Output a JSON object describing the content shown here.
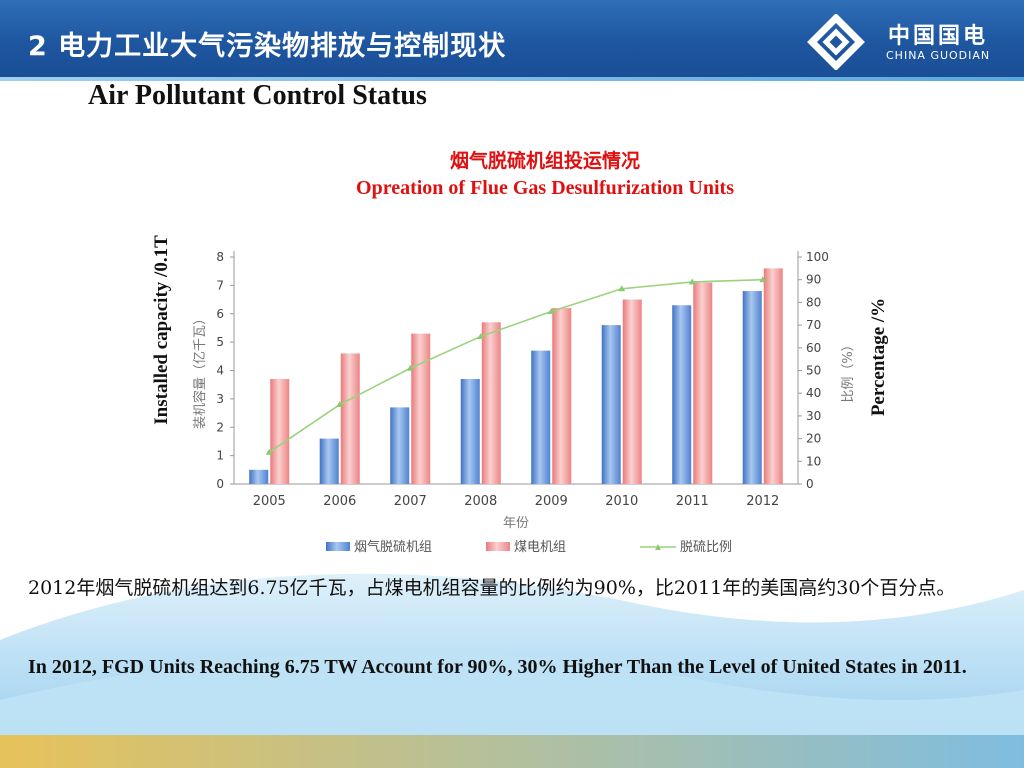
{
  "header": {
    "title": "2 电力工业大气污染物排放与控制现状",
    "logo_cn": "中国国电",
    "logo_en": "CHINA GUODIAN"
  },
  "subtitle": "Air Pollutant Control Status",
  "colors": {
    "header_blue": "#1e56a0",
    "title_red": "#e01010",
    "bar_blue": "#5b8fd6",
    "bar_red": "#f08f8f",
    "line_green": "#8fcf74"
  },
  "chart_data": {
    "type": "bar",
    "title": "烟气脱硫机组投运情况",
    "subtitle": "Opreation of  Flue Gas Desulfurization Units",
    "xlabel": "年份",
    "ylabel": "装机容量（亿千瓦）",
    "ylabel_en": "Installed capacity /0.1T",
    "y2label": "比例（%）",
    "y2label_en": "Percentage /%",
    "ylim": [
      0,
      8
    ],
    "y2lim": [
      0,
      100
    ],
    "yticks": [
      "0",
      "1",
      "2",
      "3",
      "4",
      "5",
      "6",
      "7",
      "8"
    ],
    "y2ticks": [
      "0",
      "10",
      "20",
      "30",
      "40",
      "50",
      "60",
      "70",
      "80",
      "90",
      "100"
    ],
    "categories": [
      "2005",
      "2006",
      "2007",
      "2008",
      "2009",
      "2010",
      "2011",
      "2012"
    ],
    "series": [
      {
        "name": "烟气脱硫机组",
        "kind": "bar",
        "axis": "left",
        "values": [
          0.5,
          1.6,
          2.7,
          3.7,
          4.7,
          5.6,
          6.3,
          6.8
        ]
      },
      {
        "name": "煤电机组",
        "kind": "bar",
        "axis": "left",
        "values": [
          3.7,
          4.6,
          5.3,
          5.7,
          6.2,
          6.5,
          7.1,
          7.6
        ]
      },
      {
        "name": "脱硫比例",
        "kind": "line",
        "axis": "right",
        "values": [
          14,
          35,
          51,
          65,
          76,
          86,
          89,
          90
        ]
      }
    ],
    "legend_position": "bottom",
    "grid": false
  },
  "paragraph_cn": "2012年烟气脱硫机组达到6.75亿千瓦，占煤电机组容量的比例约为90%，比2011年的美国高约30个百分点。",
  "paragraph_en": "In 2012, FGD Units Reaching 6.75 TW Account for 90%, 30% Higher Than the Level  of United States in 2011."
}
